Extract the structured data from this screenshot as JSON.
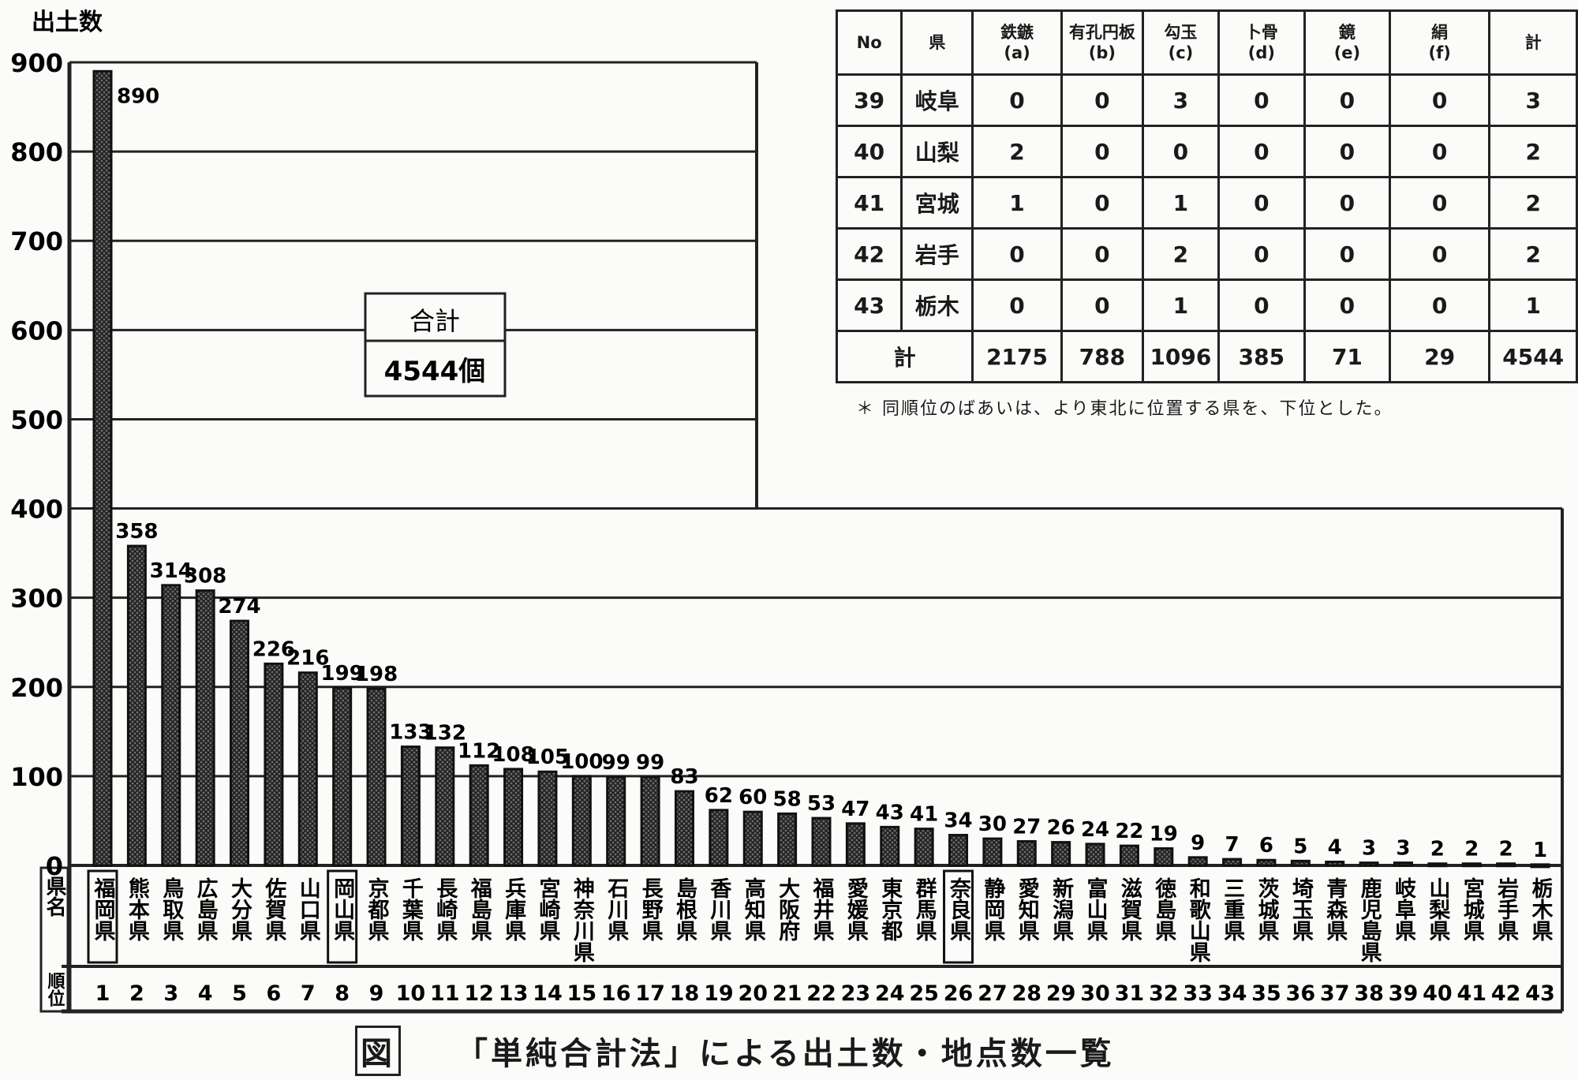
{
  "colors": {
    "ink": "#1a1a1a",
    "bar": "#3a3a3a",
    "paper": "#fbfbf9"
  },
  "chart_data": {
    "type": "bar",
    "ylabel": "出土数",
    "ylim": [
      0,
      900
    ],
    "yticks": [
      0,
      100,
      200,
      300,
      400,
      500,
      600,
      700,
      800,
      900
    ],
    "grid": true,
    "row_labels": {
      "name": "県名",
      "rank": "順位"
    },
    "categories": [
      "福岡県",
      "熊本県",
      "鳥取県",
      "広島県",
      "大分県",
      "佐賀県",
      "山口県",
      "岡山県",
      "京都県",
      "千葉県",
      "長崎県",
      "福島県",
      "兵庫県",
      "宮崎県",
      "神奈川県",
      "石川県",
      "長野県",
      "島根県",
      "香川県",
      "高知県",
      "大阪府",
      "福井県",
      "愛媛県",
      "東京都",
      "群馬県",
      "奈良県",
      "静岡県",
      "愛知県",
      "新潟県",
      "富山県",
      "滋賀県",
      "徳島県",
      "和歌山県",
      "三重県",
      "茨城県",
      "埼玉県",
      "青森県",
      "鹿児島県",
      "岐阜県",
      "山梨県",
      "宮城県",
      "岩手県",
      "栃木県"
    ],
    "values": [
      890,
      358,
      314,
      308,
      274,
      226,
      216,
      199,
      198,
      133,
      132,
      112,
      108,
      105,
      100,
      99,
      99,
      83,
      62,
      60,
      58,
      53,
      47,
      43,
      41,
      34,
      30,
      27,
      26,
      24,
      22,
      19,
      9,
      7,
      6,
      5,
      4,
      3,
      3,
      2,
      2,
      2,
      1
    ],
    "ranks": [
      "1",
      "2",
      "3",
      "4",
      "5",
      "6",
      "7",
      "8",
      "9",
      "10",
      "11",
      "12",
      "13",
      "14",
      "15",
      "16",
      "17",
      "18",
      "19",
      "20",
      "21",
      "22",
      "23",
      "24",
      "25",
      "26",
      "27",
      "28",
      "29",
      "30",
      "31",
      "32",
      "33",
      "34",
      "35",
      "36",
      "37",
      "38",
      "39",
      "40",
      "41",
      "42",
      "43"
    ],
    "boxed_categories": [
      "福岡県",
      "岡山県",
      "奈良県"
    ],
    "total_box": {
      "label": "合計",
      "value": "4544個"
    }
  },
  "table": {
    "headers": [
      "No",
      "県",
      "鉄鏃\n(a)",
      "有孔円板\n(b)",
      "勾玉\n(c)",
      "卜骨\n(d)",
      "鏡\n(e)",
      "絹\n(f)",
      "計"
    ],
    "rows": [
      [
        "39",
        "岐阜",
        "0",
        "0",
        "3",
        "0",
        "0",
        "0",
        "3"
      ],
      [
        "40",
        "山梨",
        "2",
        "0",
        "0",
        "0",
        "0",
        "0",
        "2"
      ],
      [
        "41",
        "宮城",
        "1",
        "0",
        "1",
        "0",
        "0",
        "0",
        "2"
      ],
      [
        "42",
        "岩手",
        "0",
        "0",
        "2",
        "0",
        "0",
        "0",
        "2"
      ],
      [
        "43",
        "栃木",
        "0",
        "0",
        "1",
        "0",
        "0",
        "0",
        "1"
      ]
    ],
    "total_row": {
      "label": "計",
      "values": [
        "2175",
        "788",
        "1096",
        "385",
        "71",
        "29",
        "4544"
      ]
    },
    "note": "＊ 同順位のばあいは、より東北に位置する県を、下位とした。"
  },
  "caption": {
    "fig": "図",
    "text": "「単純合計法」による出土数・地点数一覧"
  }
}
